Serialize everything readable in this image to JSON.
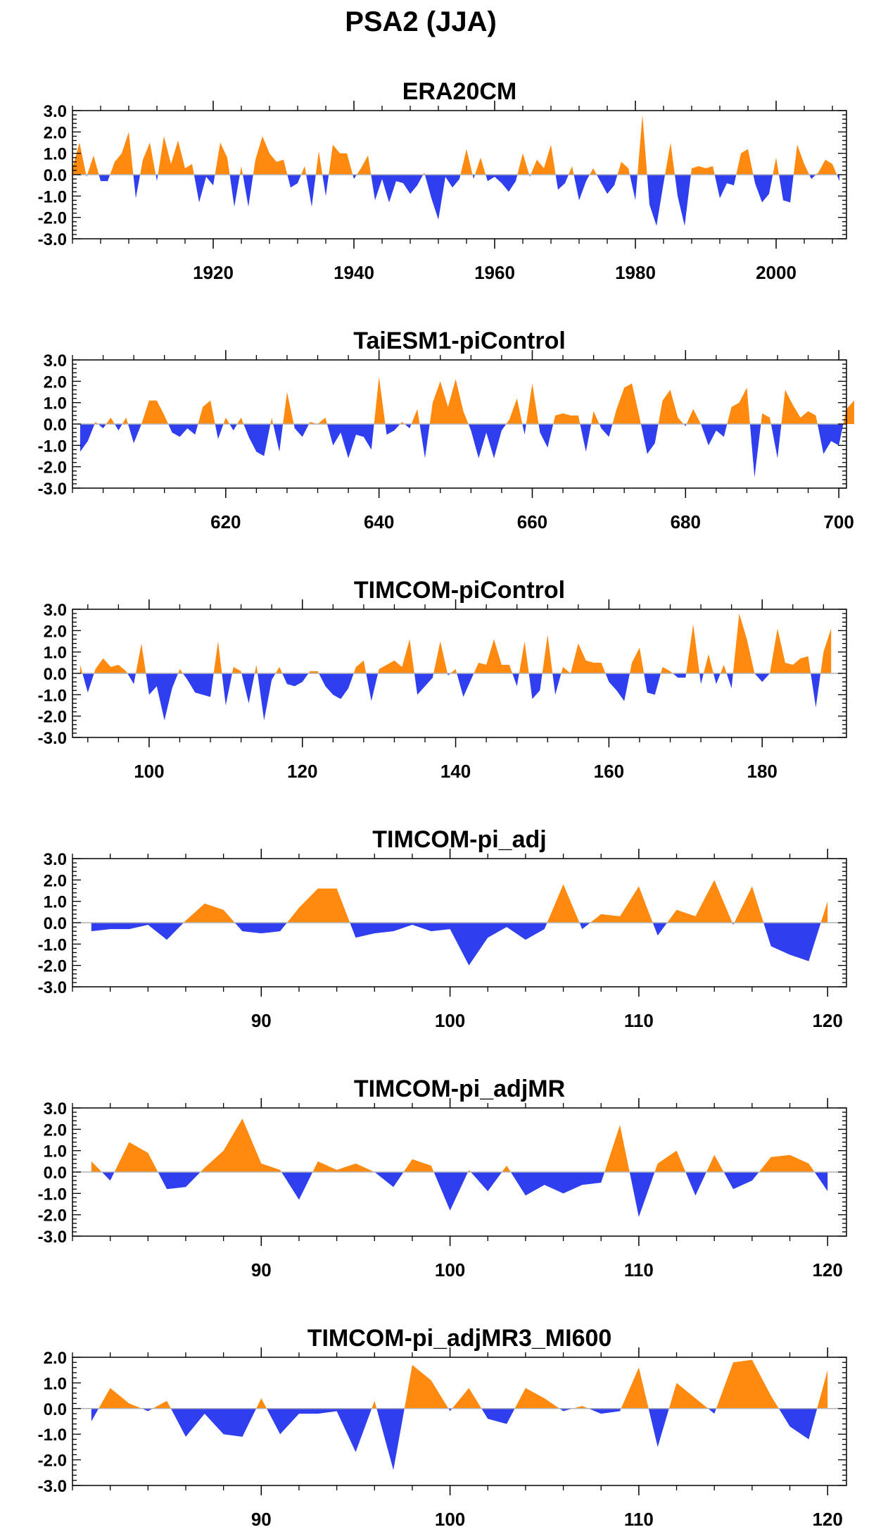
{
  "title": "PSA2 (JJA)",
  "colors": {
    "positive": "#ff8a0f",
    "negative": "#2f3ff0",
    "axis": "#000000",
    "zero_line": "#b4b4b4"
  },
  "chart_data": [
    {
      "type": "area",
      "title": "ERA20CM",
      "x_start": 1900,
      "x_step": 1,
      "xlim": [
        1900,
        2010
      ],
      "x_ticks": [
        1920,
        1940,
        1960,
        1980,
        2000
      ],
      "x_tick_labels": [
        "1920",
        "1940",
        "1960",
        "1980",
        "2000"
      ],
      "ylim": [
        -3,
        3
      ],
      "y_ticks": [
        3,
        2,
        1,
        0,
        -1,
        -2,
        -3
      ],
      "y_tick_labels": [
        "3.0",
        "2.0",
        "1.0",
        "0.0",
        "-1.0",
        "-2.0",
        "-3.0"
      ],
      "values": [
        0.3,
        1.5,
        -0.1,
        0.9,
        -0.3,
        -0.3,
        0.6,
        1.0,
        2.0,
        -1.1,
        0.7,
        1.5,
        -0.3,
        1.8,
        0.5,
        1.6,
        0.3,
        0.5,
        -1.3,
        -0.1,
        -0.5,
        1.5,
        0.8,
        -1.5,
        0.4,
        -1.5,
        0.7,
        1.8,
        1.0,
        0.6,
        0.7,
        -0.6,
        -0.4,
        0.4,
        -1.5,
        1.1,
        -1.0,
        1.4,
        1.0,
        1.0,
        -0.2,
        0.3,
        0.9,
        -1.2,
        -0.2,
        -1.3,
        -0.3,
        -0.4,
        -0.9,
        -0.5,
        0.1,
        -1.1,
        -2.1,
        -0.1,
        -0.6,
        -0.2,
        1.2,
        -0.2,
        0.8,
        -0.3,
        -0.1,
        -0.4,
        -0.8,
        -0.3,
        1.0,
        -0.1,
        0.7,
        0.3,
        1.4,
        -0.7,
        -0.4,
        0.4,
        -1.2,
        -0.3,
        0.3,
        -0.3,
        -0.9,
        -0.5,
        0.6,
        0.3,
        -1.2,
        2.8,
        -1.4,
        -2.4,
        -0.4,
        1.5,
        -1.0,
        -2.4,
        0.3,
        0.4,
        0.3,
        0.4,
        -1.1,
        -0.4,
        -0.5,
        1.0,
        1.2,
        -0.4,
        -1.3,
        -0.9,
        0.8,
        -1.2,
        -1.3,
        1.4,
        0.5,
        -0.2,
        0.1,
        0.7,
        0.5,
        -0.3
      ]
    },
    {
      "type": "area",
      "title": "TaiESM1-piControl",
      "x_start": 601,
      "x_step": 1,
      "xlim": [
        600,
        701
      ],
      "x_ticks": [
        620,
        640,
        660,
        680,
        700
      ],
      "x_tick_labels": [
        "620",
        "640",
        "660",
        "680",
        "700"
      ],
      "ylim": [
        -3,
        3
      ],
      "y_ticks": [
        3,
        2,
        1,
        0,
        -1,
        -2,
        -3
      ],
      "y_tick_labels": [
        "3.0",
        "2.0",
        "1.0",
        "0.0",
        "-1.0",
        "-2.0",
        "-3.0"
      ],
      "values": [
        -1.3,
        -0.8,
        0.1,
        -0.2,
        0.3,
        -0.3,
        0.3,
        -0.9,
        0.0,
        1.1,
        1.1,
        0.4,
        -0.4,
        -0.6,
        -0.2,
        -0.5,
        0.8,
        1.1,
        -0.7,
        0.3,
        -0.3,
        0.3,
        -0.6,
        -1.3,
        -1.5,
        0.3,
        -1.3,
        1.5,
        -0.2,
        -0.6,
        0.1,
        0.0,
        0.3,
        -1.0,
        -0.4,
        -1.6,
        -0.5,
        -0.6,
        -1.2,
        2.2,
        -0.5,
        -0.3,
        0.1,
        -0.2,
        0.7,
        -1.6,
        1.0,
        2.0,
        0.8,
        2.1,
        0.6,
        -0.3,
        -1.6,
        -0.4,
        -1.6,
        -0.3,
        0.2,
        1.2,
        -0.5,
        1.9,
        -0.4,
        -1.1,
        0.4,
        0.5,
        0.4,
        0.4,
        -1.3,
        0.6,
        -0.2,
        -0.6,
        0.7,
        1.7,
        1.9,
        0.3,
        -1.4,
        -0.9,
        1.1,
        1.6,
        0.3,
        -0.1,
        0.7,
        0.0,
        -1.0,
        -0.3,
        -0.6,
        0.8,
        1.0,
        1.7,
        -2.5,
        0.5,
        0.3,
        -1.6,
        1.6,
        0.9,
        0.3,
        0.6,
        0.4,
        -1.4,
        -0.8,
        -1.0,
        0.7,
        1.1
      ]
    },
    {
      "type": "area",
      "title": "TIMCOM-piControl",
      "x_start": 91,
      "x_step": 1,
      "xlim": [
        90,
        191
      ],
      "x_ticks": [
        100,
        120,
        140,
        160,
        180
      ],
      "x_tick_labels": [
        "100",
        "120",
        "140",
        "160",
        "180"
      ],
      "ylim": [
        -3,
        3
      ],
      "y_ticks": [
        3,
        2,
        1,
        0,
        -1,
        -2,
        -3
      ],
      "y_tick_labels": [
        "3.0",
        "2.0",
        "1.0",
        "0.0",
        "-1.0",
        "-2.0",
        "-3.0"
      ],
      "values": [
        0.4,
        -0.9,
        0.2,
        0.7,
        0.3,
        0.4,
        0.1,
        -0.5,
        1.4,
        -1.0,
        -0.6,
        -2.2,
        -0.7,
        0.2,
        -0.3,
        -0.9,
        -1.0,
        -1.1,
        1.5,
        -1.5,
        0.3,
        0.1,
        -1.4,
        0.4,
        -2.2,
        -0.3,
        0.3,
        -0.5,
        -0.6,
        -0.4,
        0.1,
        0.1,
        -0.6,
        -1.0,
        -1.2,
        -0.7,
        0.3,
        0.6,
        -1.3,
        0.2,
        0.4,
        0.6,
        0.3,
        1.6,
        -1.0,
        -0.6,
        -0.2,
        1.5,
        -0.1,
        0.2,
        -1.1,
        -0.3,
        0.5,
        0.4,
        1.6,
        0.4,
        0.4,
        -0.6,
        1.5,
        -1.2,
        -0.8,
        1.8,
        -1.0,
        0.3,
        0.0,
        1.4,
        0.6,
        0.5,
        0.5,
        -0.4,
        -0.8,
        -1.3,
        0.5,
        1.2,
        -0.9,
        -1.0,
        0.3,
        0.1,
        -0.2,
        -0.2,
        2.3,
        -0.5,
        0.9,
        -0.5,
        0.4,
        -0.7,
        2.8,
        1.6,
        0.0,
        -0.4,
        0.0,
        2.1,
        0.5,
        0.4,
        0.7,
        0.8,
        -1.6,
        1.0,
        2.1
      ]
    },
    {
      "type": "area",
      "title": "TIMCOM-pi_adj",
      "x_start": 81,
      "x_step": 1,
      "xlim": [
        80,
        121
      ],
      "x_ticks": [
        90,
        100,
        110,
        120
      ],
      "x_tick_labels": [
        "90",
        "100",
        "110",
        "120"
      ],
      "ylim": [
        -3,
        3
      ],
      "y_ticks": [
        3,
        2,
        1,
        0,
        -1,
        -2,
        -3
      ],
      "y_tick_labels": [
        "3.0",
        "2.0",
        "1.0",
        "0.0",
        "-1.0",
        "-2.0",
        "-3.0"
      ],
      "values": [
        -0.4,
        -0.3,
        -0.3,
        -0.1,
        -0.8,
        0.1,
        0.9,
        0.6,
        -0.4,
        -0.5,
        -0.4,
        0.7,
        1.6,
        1.6,
        -0.7,
        -0.5,
        -0.4,
        -0.1,
        -0.4,
        -0.3,
        -2.0,
        -0.7,
        -0.2,
        -0.8,
        -0.3,
        1.8,
        -0.3,
        0.4,
        0.3,
        1.7,
        -0.6,
        0.6,
        0.3,
        2.0,
        -0.1,
        1.7,
        -1.1,
        -1.5,
        -1.8,
        1.0
      ]
    },
    {
      "type": "area",
      "title": "TIMCOM-pi_adjMR",
      "x_start": 81,
      "x_step": 1,
      "xlim": [
        80,
        121
      ],
      "x_ticks": [
        90,
        100,
        110,
        120
      ],
      "x_tick_labels": [
        "90",
        "100",
        "110",
        "120"
      ],
      "ylim": [
        -3,
        3
      ],
      "y_ticks": [
        3,
        2,
        1,
        0,
        -1,
        -2,
        -3
      ],
      "y_tick_labels": [
        "3.0",
        "2.0",
        "1.0",
        "0.0",
        "-1.0",
        "-2.0",
        "-3.0"
      ],
      "values": [
        0.5,
        -0.4,
        1.4,
        0.9,
        -0.8,
        -0.7,
        0.2,
        1.0,
        2.5,
        0.4,
        0.1,
        -1.3,
        0.5,
        0.1,
        0.4,
        0.0,
        -0.7,
        0.6,
        0.3,
        -1.8,
        0.1,
        -0.9,
        0.3,
        -1.1,
        -0.6,
        -1.0,
        -0.6,
        -0.5,
        2.2,
        -2.1,
        0.4,
        1.0,
        -1.1,
        0.8,
        -0.8,
        -0.4,
        0.7,
        0.8,
        0.4,
        -0.9
      ]
    },
    {
      "type": "area",
      "title": "TIMCOM-pi_adjMR3_MI600",
      "x_start": 81,
      "x_step": 1,
      "xlim": [
        80,
        121
      ],
      "x_ticks": [
        90,
        100,
        110,
        120
      ],
      "x_tick_labels": [
        "90",
        "100",
        "110",
        "120"
      ],
      "ylim": [
        -3,
        2
      ],
      "y_ticks": [
        2,
        1,
        0,
        -1,
        -2,
        -3
      ],
      "y_tick_labels": [
        "2.0",
        "1.0",
        "0.0",
        "-1.0",
        "-2.0",
        "-3.0"
      ],
      "values": [
        -0.5,
        0.8,
        0.2,
        -0.1,
        0.3,
        -1.1,
        -0.2,
        -1.0,
        -1.1,
        0.4,
        -1.0,
        -0.2,
        -0.2,
        -0.1,
        -1.7,
        0.3,
        -2.4,
        1.7,
        1.1,
        -0.1,
        0.8,
        -0.4,
        -0.6,
        0.8,
        0.4,
        -0.1,
        0.1,
        -0.2,
        -0.1,
        1.6,
        -1.5,
        1.0,
        0.4,
        -0.2,
        1.8,
        1.9,
        0.5,
        -0.7,
        -1.2,
        1.5
      ]
    }
  ]
}
